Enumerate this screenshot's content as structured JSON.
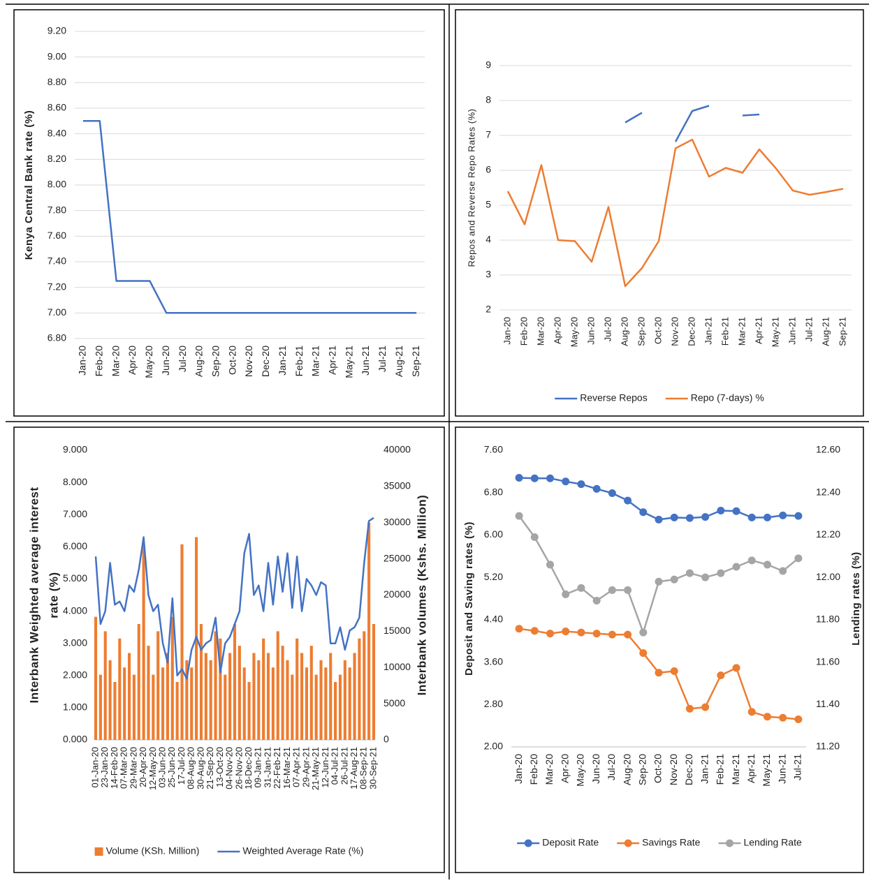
{
  "chart_data": [
    {
      "type": "line",
      "y_label": "Kenya Central Bank rate (%)",
      "categories": [
        "Jan-20",
        "Feb-20",
        "Mar-20",
        "Apr-20",
        "May-20",
        "Jun-20",
        "Jul-20",
        "Aug-20",
        "Sep-20",
        "Oct-20",
        "Nov-20",
        "Dec-20",
        "Jan-21",
        "Feb-21",
        "Mar-21",
        "Apr-21",
        "May-21",
        "Jun-21",
        "Jul-21",
        "Aug-21",
        "Sep-21"
      ],
      "series": [
        {
          "name": null,
          "color": "#4472c4",
          "values": [
            8.5,
            8.5,
            7.25,
            7.25,
            7.25,
            7.0,
            7.0,
            7.0,
            7.0,
            7.0,
            7.0,
            7.0,
            7.0,
            7.0,
            7.0,
            7.0,
            7.0,
            7.0,
            7.0,
            7.0,
            7.0
          ]
        }
      ],
      "ylim": [
        6.8,
        9.2
      ],
      "yticks": [
        {
          "value": 6.8,
          "label": "6.80"
        },
        {
          "value": 7.0,
          "label": "7.00"
        },
        {
          "value": 7.2,
          "label": "7.20"
        },
        {
          "value": 7.4,
          "label": "7.40"
        },
        {
          "value": 7.6,
          "label": "7.60"
        },
        {
          "value": 7.8,
          "label": "7.80"
        },
        {
          "value": 8.0,
          "label": "8.00"
        },
        {
          "value": 8.2,
          "label": "8.20"
        },
        {
          "value": 8.4,
          "label": "8.40"
        },
        {
          "value": 8.6,
          "label": "8.60"
        },
        {
          "value": 8.8,
          "label": "8.80"
        },
        {
          "value": 9.0,
          "label": "9.00"
        },
        {
          "value": 9.2,
          "label": "9.20"
        }
      ],
      "grid": true
    },
    {
      "type": "line",
      "y_label": "Repos and Reverse Repo Rates (%)",
      "categories": [
        "Jan-20",
        "Feb-20",
        "Mar-20",
        "Apr-20",
        "May-20",
        "Jun-20",
        "Jul-20",
        "Aug-20",
        "Sep-20",
        "Oct-20",
        "Nov-20",
        "Dec-20",
        "Jan-21",
        "Feb-21",
        "Mar-21",
        "Apr-21",
        "May-21",
        "Jun-21",
        "Jul-21",
        "Aug-21",
        "Sep-21"
      ],
      "series": [
        {
          "name": "Reverse Repos",
          "color": "#4472c4",
          "values": [
            null,
            null,
            null,
            null,
            null,
            null,
            null,
            7.37,
            7.65,
            null,
            6.82,
            7.7,
            7.85,
            null,
            7.57,
            7.6,
            null,
            null,
            null,
            null,
            null
          ]
        },
        {
          "name": "Repo (7-days) %",
          "color": "#ed7d31",
          "values": [
            5.4,
            4.45,
            6.15,
            4.0,
            3.97,
            3.38,
            4.95,
            2.68,
            3.2,
            3.97,
            6.63,
            6.88,
            5.82,
            6.07,
            5.93,
            6.6,
            6.05,
            5.42,
            5.3,
            5.38,
            5.47
          ]
        }
      ],
      "ylim": [
        2,
        9
      ],
      "yticks": [
        2,
        3,
        4,
        5,
        6,
        7,
        8,
        9
      ],
      "grid": true
    },
    {
      "type": "combo",
      "y_label": [
        "Interbank Weighted average interest",
        "rate (%)"
      ],
      "y2_label": "Interbank volumes (Kshs. Million)",
      "categories": [
        "01-Jan-20",
        null,
        "23-Jan-20",
        null,
        "14-Feb-20",
        null,
        "07-Mar-20",
        null,
        "29-Mar-20",
        null,
        "20-Apr-20",
        null,
        "12-May-20",
        null,
        "03-Jun-20",
        null,
        "25-Jun-20",
        null,
        "17-Jul-20",
        null,
        "08-Aug-20",
        null,
        "30-Aug-20",
        null,
        "21-Sep-20",
        null,
        "13-Oct-20",
        null,
        "04-Nov-20",
        null,
        "26-Nov-20",
        null,
        "18-Dec-20",
        null,
        "09-Jan-21",
        null,
        "31-Jan-21",
        null,
        "22-Feb-21",
        null,
        "16-Mar-21",
        null,
        "07-Apr-21",
        null,
        "29-Apr-21",
        null,
        "21-May-21",
        null,
        "12-Jun-21",
        null,
        "04-Jul-21",
        null,
        "26-Jul-21",
        null,
        "17-Aug-21",
        null,
        "08-Sep-21",
        null,
        "30-Sep-21"
      ],
      "series": [
        {
          "name": "Volume (KSh. Million)",
          "color": "#ed7d31",
          "kind": "bar",
          "axis": "y2",
          "values": [
            17000,
            9000,
            15000,
            11000,
            8000,
            14000,
            10000,
            12000,
            9000,
            16000,
            27000,
            13000,
            9000,
            15000,
            10000,
            12000,
            17000,
            8000,
            27000,
            11000,
            10000,
            28000,
            16000,
            12000,
            11000,
            15000,
            14000,
            9000,
            12000,
            16000,
            13000,
            10000,
            8000,
            12000,
            11000,
            14000,
            12000,
            10000,
            15000,
            13000,
            11000,
            9000,
            14000,
            12000,
            10000,
            13000,
            9000,
            11000,
            10000,
            12000,
            8000,
            9000,
            11000,
            10000,
            12000,
            14000,
            15000,
            30000,
            16000
          ]
        },
        {
          "name": "Weighted Average Rate (%)",
          "color": "#4472c4",
          "kind": "line",
          "values": [
            5.7,
            3.6,
            4.0,
            5.5,
            4.2,
            4.3,
            4.0,
            4.8,
            4.6,
            5.3,
            6.3,
            4.5,
            4.0,
            4.2,
            3.0,
            2.4,
            4.4,
            2.0,
            2.2,
            1.9,
            2.8,
            3.2,
            2.8,
            3.0,
            3.1,
            3.8,
            2.1,
            3.0,
            3.2,
            3.6,
            4.0,
            5.8,
            6.4,
            4.5,
            4.8,
            4.0,
            5.5,
            4.2,
            5.7,
            4.6,
            5.8,
            4.1,
            5.7,
            4.0,
            5.0,
            4.8,
            4.5,
            4.9,
            4.8,
            3.0,
            3.0,
            3.5,
            2.8,
            3.4,
            3.5,
            3.8,
            5.5,
            6.8,
            6.9
          ]
        }
      ],
      "ylim": [
        0,
        9
      ],
      "yticks": [
        {
          "value": 0,
          "label": "0.000"
        },
        {
          "value": 1,
          "label": "1.000"
        },
        {
          "value": 2,
          "label": "2.000"
        },
        {
          "value": 3,
          "label": "3.000"
        },
        {
          "value": 4,
          "label": "4.000"
        },
        {
          "value": 5,
          "label": "5.000"
        },
        {
          "value": 6,
          "label": "6.000"
        },
        {
          "value": 7,
          "label": "7.000"
        },
        {
          "value": 8,
          "label": "8.000"
        },
        {
          "value": 9,
          "label": "9.000"
        }
      ],
      "y2lim": [
        0,
        40000
      ],
      "y2ticks": [
        0,
        5000,
        10000,
        15000,
        20000,
        25000,
        30000,
        35000,
        40000
      ],
      "grid": false
    },
    {
      "type": "line",
      "markers": true,
      "y_label": "Deposit and Saving rates (%)",
      "y2_label": "Lending rates (%)",
      "categories": [
        "Jan-20",
        "Feb-20",
        "Mar-20",
        "Apr-20",
        "May-20",
        "Jun-20",
        "Jul-20",
        "Aug-20",
        "Sep-20",
        "Oct-20",
        "Nov-20",
        "Dec-20",
        "Jan-21",
        "Feb-21",
        "Mar-21",
        "Apr-21",
        "May-21",
        "Jun-21",
        "Jul-21"
      ],
      "series": [
        {
          "name": "Deposit Rate",
          "color": "#4472c4",
          "values": [
            7.08,
            7.07,
            7.07,
            7.01,
            6.96,
            6.87,
            6.79,
            6.65,
            6.43,
            6.29,
            6.33,
            6.32,
            6.34,
            6.46,
            6.45,
            6.33,
            6.33,
            6.37,
            6.36
          ]
        },
        {
          "name": "Savings Rate",
          "color": "#ed7d31",
          "values": [
            4.23,
            4.19,
            4.14,
            4.18,
            4.16,
            4.14,
            4.12,
            4.12,
            3.77,
            3.4,
            3.43,
            2.72,
            2.75,
            3.35,
            3.49,
            2.66,
            2.57,
            2.55,
            2.52
          ]
        },
        {
          "name": "Lending Rate",
          "color": "#a5a5a5",
          "axis": "y2",
          "values": [
            12.29,
            12.19,
            12.06,
            11.92,
            11.95,
            11.89,
            11.94,
            11.94,
            11.74,
            11.98,
            11.99,
            12.02,
            12.0,
            12.02,
            12.05,
            12.08,
            12.06,
            12.03,
            12.09
          ]
        }
      ],
      "ylim": [
        2,
        7.6
      ],
      "yticks": [
        {
          "value": 2,
          "label": "2.00"
        },
        {
          "value": 2.8,
          "label": "2.80"
        },
        {
          "value": 3.6,
          "label": "3.60"
        },
        {
          "value": 4.4,
          "label": "4.40"
        },
        {
          "value": 5.2,
          "label": "5.20"
        },
        {
          "value": 6.0,
          "label": "6.00"
        },
        {
          "value": 6.8,
          "label": "6.80"
        },
        {
          "value": 7.6,
          "label": "7.60"
        }
      ],
      "y2lim": [
        11.2,
        12.6
      ],
      "y2ticks": [
        {
          "value": 11.2,
          "label": "11.20"
        },
        {
          "value": 11.4,
          "label": "11.40"
        },
        {
          "value": 11.6,
          "label": "11.60"
        },
        {
          "value": 11.8,
          "label": "11.80"
        },
        {
          "value": 12.0,
          "label": "12.00"
        },
        {
          "value": 12.2,
          "label": "12.20"
        },
        {
          "value": 12.4,
          "label": "12.40"
        },
        {
          "value": 12.6,
          "label": "12.60"
        }
      ],
      "grid": false
    }
  ]
}
